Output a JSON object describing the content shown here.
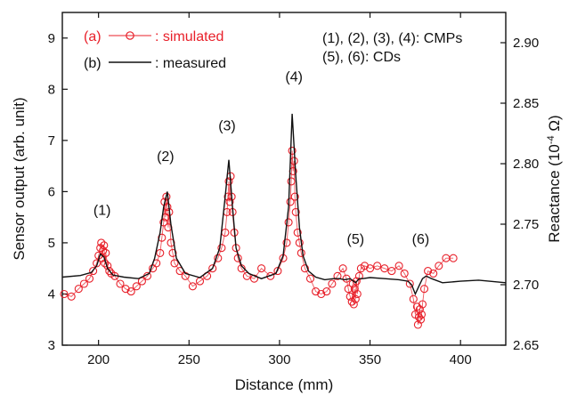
{
  "chart_data": {
    "type": "line",
    "xlabel": "Distance (mm)",
    "ylabel": "Sensor output (arb. unit)",
    "y2label_main": "Reactance (10",
    "y2label_sup": "-4",
    "y2label_end": " Ω)",
    "xlim": [
      180,
      425
    ],
    "ylim": [
      3,
      9.5
    ],
    "y2lim": [
      2.65,
      2.925
    ],
    "xticks": [
      200,
      250,
      300,
      350,
      400
    ],
    "yticks": [
      3,
      4,
      5,
      6,
      7,
      8,
      9
    ],
    "y2ticks": [
      2.65,
      2.7,
      2.75,
      2.8,
      2.85,
      2.9
    ],
    "y2tick_labels": [
      "2.65",
      "2.70",
      "2.75",
      "2.80",
      "2.85",
      "2.90"
    ],
    "legend": [
      {
        "prefix": "(a)",
        "label": ": simulated",
        "color": "#e8202a",
        "marker": "circle"
      },
      {
        "prefix": "(b)",
        "label": ": measured",
        "color": "#111111",
        "marker": "none"
      }
    ],
    "note_lines": [
      "(1), (2), (3), (4): CMPs",
      "(5), (6): CDs"
    ],
    "peak_labels": [
      {
        "text": "(1)",
        "x": 202,
        "y": 5.55
      },
      {
        "text": "(2)",
        "x": 237,
        "y": 6.6
      },
      {
        "text": "(3)",
        "x": 271,
        "y": 7.2
      },
      {
        "text": "(4)",
        "x": 308,
        "y": 8.15
      },
      {
        "text": "(5)",
        "x": 342,
        "y": 4.98
      },
      {
        "text": "(6)",
        "x": 378,
        "y": 4.98
      }
    ],
    "series": [
      {
        "name": "measured",
        "color": "#111111",
        "x": [
          180,
          190,
          196,
          199,
          201,
          203,
          205,
          208,
          214,
          222,
          228,
          231,
          234,
          236,
          238,
          240,
          243,
          248,
          256,
          263,
          267,
          270,
          272,
          274,
          276,
          279,
          283,
          290,
          298,
          302,
          305,
          307,
          309,
          311,
          313,
          316,
          320,
          325,
          330,
          333,
          336,
          339,
          342,
          344,
          346,
          350,
          358,
          366,
          371,
          373,
          375,
          377,
          379,
          381,
          384,
          390,
          400,
          410,
          425
        ],
        "y": [
          4.33,
          4.36,
          4.42,
          4.55,
          4.78,
          4.72,
          4.5,
          4.37,
          4.33,
          4.3,
          4.4,
          4.7,
          5.2,
          5.7,
          6.0,
          5.35,
          4.7,
          4.4,
          4.32,
          4.5,
          4.9,
          5.9,
          6.62,
          5.7,
          4.9,
          4.55,
          4.4,
          4.3,
          4.4,
          4.75,
          5.7,
          7.52,
          6.3,
          5.3,
          4.75,
          4.45,
          4.33,
          4.28,
          4.3,
          4.3,
          4.28,
          4.3,
          4.22,
          4.3,
          4.3,
          4.32,
          4.3,
          4.28,
          4.25,
          4.18,
          4.0,
          4.15,
          4.3,
          4.35,
          4.3,
          4.22,
          4.25,
          4.27,
          4.22
        ]
      },
      {
        "name": "simulated",
        "color": "#e8202a",
        "x": [
          181,
          185,
          189,
          192,
          195,
          197,
          199,
          200,
          201,
          201.5,
          202,
          202.5,
          203,
          203.5,
          204,
          205,
          206,
          207,
          209,
          212,
          215,
          218,
          221,
          224,
          227,
          230,
          232,
          234,
          235,
          236,
          236.5,
          237,
          237.5,
          238,
          238.5,
          239,
          240,
          241,
          242,
          245,
          248,
          252,
          256,
          260,
          263,
          266,
          268,
          270,
          271,
          271.5,
          272,
          272.5,
          273,
          273.5,
          274,
          275,
          276,
          277,
          279,
          282,
          286,
          290,
          295,
          299,
          302,
          304,
          305,
          306,
          306.5,
          307,
          307.5,
          308,
          308.5,
          309,
          310,
          311,
          312,
          314,
          317,
          320,
          323,
          326,
          329,
          332,
          335,
          337,
          338,
          339,
          340,
          340.5,
          341,
          341.5,
          342,
          342.5,
          343,
          344,
          345,
          347,
          350,
          354,
          358,
          362,
          366,
          369,
          372,
          374,
          375,
          376,
          376.5,
          377,
          377.5,
          378,
          378.5,
          379,
          380,
          382,
          385,
          388,
          392,
          396
        ],
        "y": [
          4.0,
          3.95,
          4.1,
          4.2,
          4.3,
          4.45,
          4.6,
          4.75,
          4.9,
          5.0,
          4.7,
          4.85,
          4.95,
          4.6,
          4.8,
          4.55,
          4.45,
          4.4,
          4.35,
          4.2,
          4.1,
          4.05,
          4.15,
          4.25,
          4.35,
          4.5,
          4.6,
          4.8,
          5.1,
          5.4,
          5.8,
          5.5,
          5.9,
          5.7,
          5.3,
          5.6,
          5.0,
          4.8,
          4.6,
          4.45,
          4.35,
          4.15,
          4.25,
          4.35,
          4.5,
          4.7,
          4.9,
          5.2,
          5.6,
          5.9,
          6.2,
          5.8,
          6.3,
          5.9,
          5.6,
          5.2,
          4.9,
          4.7,
          4.5,
          4.35,
          4.3,
          4.5,
          4.35,
          4.45,
          4.7,
          5.0,
          5.4,
          5.8,
          6.2,
          6.8,
          6.4,
          6.6,
          5.9,
          5.6,
          5.2,
          5.0,
          4.8,
          4.5,
          4.3,
          4.05,
          4.0,
          4.05,
          4.2,
          4.35,
          4.5,
          4.3,
          4.1,
          3.95,
          3.85,
          4.2,
          3.8,
          4.1,
          3.9,
          4.25,
          4.0,
          4.35,
          4.5,
          4.55,
          4.5,
          4.55,
          4.5,
          4.45,
          4.55,
          4.4,
          4.2,
          3.9,
          3.6,
          3.75,
          3.4,
          3.55,
          3.7,
          3.5,
          3.6,
          3.8,
          4.1,
          4.45,
          4.4,
          4.55,
          4.7,
          4.7
        ]
      }
    ]
  }
}
